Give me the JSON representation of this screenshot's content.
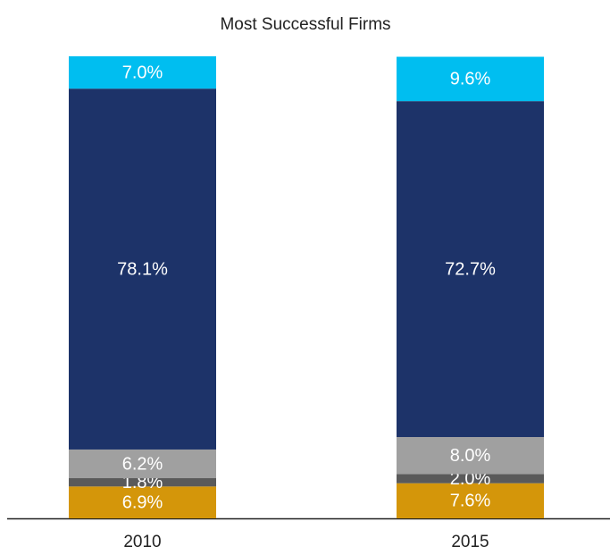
{
  "chart_data": {
    "type": "stacked_bar",
    "title": "Most Successful Firms",
    "categories": [
      "2010",
      "2015"
    ],
    "series": [
      {
        "color": "#d4960a",
        "values": [
          6.9,
          7.6
        ],
        "value_labels": [
          "6.9%",
          "7.6%"
        ]
      },
      {
        "color": "#5a5a5a",
        "values": [
          1.8,
          2.0
        ],
        "value_labels": [
          "1.8%",
          "2.0%"
        ]
      },
      {
        "color": "#a0a0a0",
        "values": [
          6.2,
          8.0
        ],
        "value_labels": [
          "6.2%",
          "8.0%"
        ]
      },
      {
        "color": "#1d3369",
        "values": [
          78.1,
          72.7
        ],
        "value_labels": [
          "78.1%",
          "72.7%"
        ]
      },
      {
        "color": "#00bef0",
        "values": [
          7.0,
          9.6
        ],
        "value_labels": [
          "7.0%",
          "9.6%"
        ]
      }
    ],
    "ylim": [
      0,
      100
    ]
  }
}
